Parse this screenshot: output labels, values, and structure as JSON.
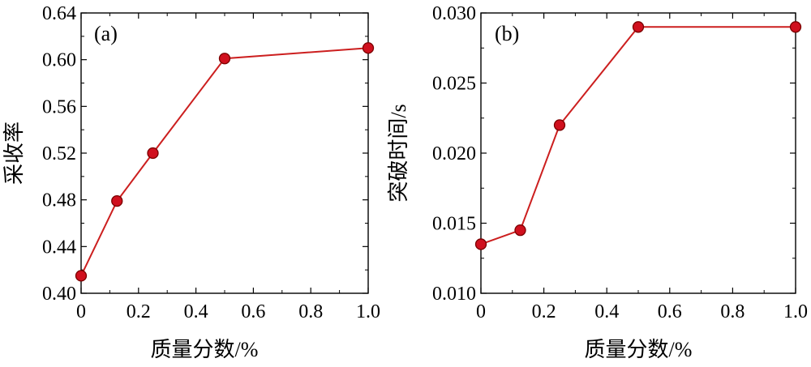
{
  "chart_data": [
    {
      "type": "line",
      "panel_label": "(a)",
      "xlabel": "质量分数/%",
      "ylabel": "采收率",
      "x": [
        0,
        0.125,
        0.25,
        0.5,
        1.0
      ],
      "series": [
        {
          "values": [
            0.415,
            0.479,
            0.52,
            0.601,
            0.61
          ]
        }
      ],
      "xlim": [
        0,
        1.0
      ],
      "ylim": [
        0.4,
        0.64
      ],
      "xticks": [
        "0",
        "0.2",
        "0.4",
        "0.6",
        "0.8",
        "1.0"
      ],
      "yticks": [
        "0.40",
        "0.44",
        "0.48",
        "0.52",
        "0.56",
        "0.60",
        "0.64"
      ],
      "grid": false,
      "line_color": "#cc1f1f",
      "marker_color": "#d0101e"
    },
    {
      "type": "line",
      "panel_label": "(b)",
      "xlabel": "质量分数/%",
      "ylabel": "突破时间/s",
      "x": [
        0,
        0.125,
        0.25,
        0.5,
        1.0
      ],
      "series": [
        {
          "values": [
            0.0135,
            0.0145,
            0.022,
            0.029,
            0.029
          ]
        }
      ],
      "xlim": [
        0,
        1.0
      ],
      "ylim": [
        0.01,
        0.03
      ],
      "xticks": [
        "0",
        "0.2",
        "0.4",
        "0.6",
        "0.8",
        "1.0"
      ],
      "yticks": [
        "0.010",
        "0.015",
        "0.020",
        "0.025",
        "0.030"
      ],
      "grid": false,
      "line_color": "#cc1f1f",
      "marker_color": "#d0101e"
    }
  ]
}
